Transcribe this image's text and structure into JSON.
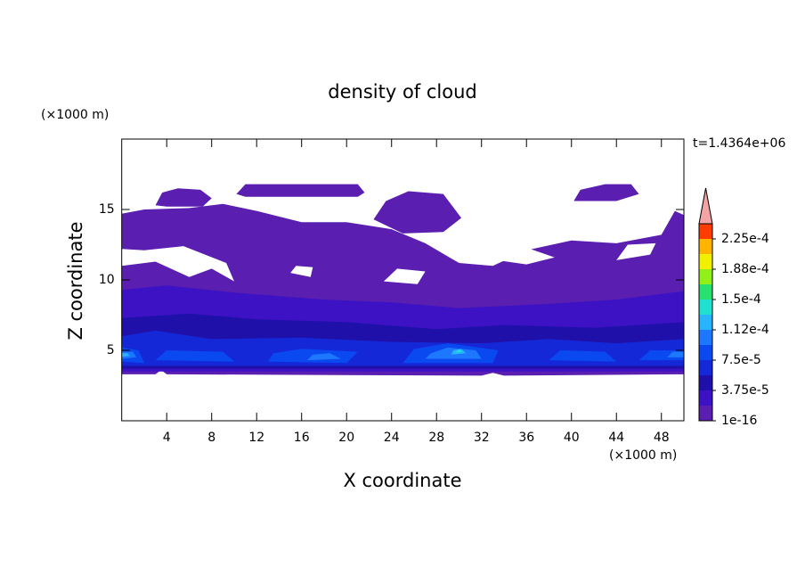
{
  "chart_data": {
    "type": "contour",
    "title": "density of cloud",
    "subtitle": "t=1.4364e+06",
    "x_label": "X coordinate",
    "y_label": "Z coordinate",
    "x_unit": "(×1000 m)",
    "y_unit": "(×1000 m)",
    "xlim": [
      0,
      50
    ],
    "ylim": [
      0,
      20
    ],
    "xticks": [
      4,
      8,
      12,
      16,
      20,
      24,
      28,
      32,
      36,
      40,
      44,
      48
    ],
    "yticks": [
      5,
      10,
      15
    ],
    "colorbar": {
      "levels": [
        1e-16,
        1.875e-05,
        3.75e-05,
        5.625e-05,
        7.5e-05,
        9.375e-05,
        0.0001125,
        0.00013125,
        0.00015,
        0.00016875,
        0.0001875,
        0.00020625,
        0.000225,
        0.00024375
      ],
      "colors": [
        "#5a1eb0",
        "#3c12c4",
        "#1e10a8",
        "#1428d8",
        "#0a48f0",
        "#1e78ff",
        "#28b4ff",
        "#20e0d0",
        "#28e070",
        "#90f018",
        "#f0f000",
        "#ffb400",
        "#ff3c00"
      ],
      "extend_color": "#f4a4a4",
      "ticks": [
        1e-16,
        {
          "value": 3.75e-05,
          "label": "3.75e-5"
        },
        {
          "value": 7.5e-05,
          "label": "7.5e-5"
        },
        {
          "value": 0.0001125,
          "label": "1.12e-4"
        },
        {
          "value": 0.00015,
          "label": "1.5e-4"
        },
        {
          "value": 0.0001875,
          "label": "1.88e-4"
        },
        {
          "value": 0.000225,
          "label": "2.25e-4"
        }
      ]
    }
  }
}
